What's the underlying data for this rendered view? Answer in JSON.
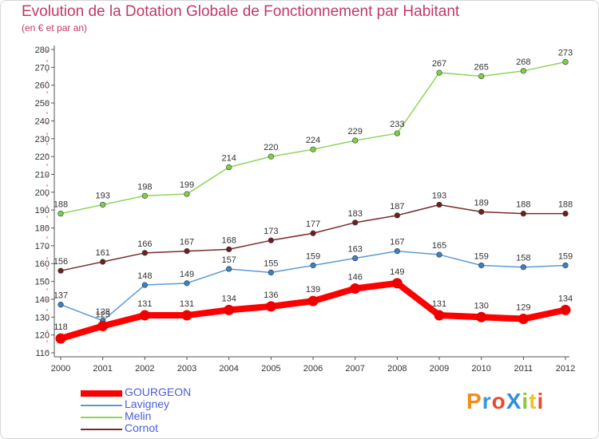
{
  "header": {
    "title": "Evolution de la Dotation Globale de Fonctionnement par Habitant",
    "subtitle": "(en € et par an)"
  },
  "brand": {
    "logo_text": "ProXiti",
    "letters": [
      {
        "ch": "P",
        "color": "#f08c1a"
      },
      {
        "ch": "r",
        "color": "#3a9ad9"
      },
      {
        "ch": "o",
        "color": "#e84a2f"
      },
      {
        "ch": "X",
        "color": "#2f8fd8"
      },
      {
        "ch": "i",
        "color": "#8cc63f"
      },
      {
        "ch": "t",
        "color": "#f2c12e"
      },
      {
        "ch": "i",
        "color": "#e84a2f"
      }
    ]
  },
  "chart_data": {
    "type": "line",
    "title": "Evolution de la Dotation Globale de Fonctionnement par Habitant",
    "ylabel": "(en € et par an)",
    "xlabel": "",
    "categories": [
      "2000",
      "2001",
      "2002",
      "2003",
      "2004",
      "2005",
      "2006",
      "2007",
      "2008",
      "2009",
      "2010",
      "2011",
      "2012"
    ],
    "ylim": [
      110,
      280
    ],
    "yticks": [
      110,
      120,
      130,
      140,
      150,
      160,
      170,
      180,
      190,
      200,
      210,
      220,
      230,
      240,
      250,
      260,
      270,
      280
    ],
    "grid": false,
    "legend_position": "bottom-left",
    "series": [
      {
        "name": "Melin",
        "color": "#8fd45a",
        "marker": "#7ed04a",
        "weight": "thin",
        "values": [
          188,
          193,
          198,
          199,
          214,
          220,
          224,
          229,
          233,
          267,
          265,
          268,
          273
        ]
      },
      {
        "name": "Cornot",
        "color": "#7a2a2a",
        "marker": "#6e1f1f",
        "weight": "thin",
        "values": [
          156,
          161,
          166,
          167,
          168,
          173,
          177,
          183,
          187,
          193,
          189,
          188,
          188
        ]
      },
      {
        "name": "Lavigney",
        "color": "#5b9bd5",
        "marker": "#3b82c4",
        "weight": "thin",
        "values": [
          137,
          128,
          148,
          149,
          157,
          155,
          159,
          163,
          167,
          165,
          159,
          158,
          159
        ]
      },
      {
        "name": "GOURGEON",
        "color": "#ff0000",
        "marker": "#ee0000",
        "weight": "thick",
        "values": [
          118,
          125,
          131,
          131,
          134,
          136,
          139,
          146,
          149,
          131,
          130,
          129,
          134
        ]
      }
    ],
    "legend_order": [
      "GOURGEON",
      "Lavigney",
      "Melin",
      "Cornot"
    ]
  }
}
